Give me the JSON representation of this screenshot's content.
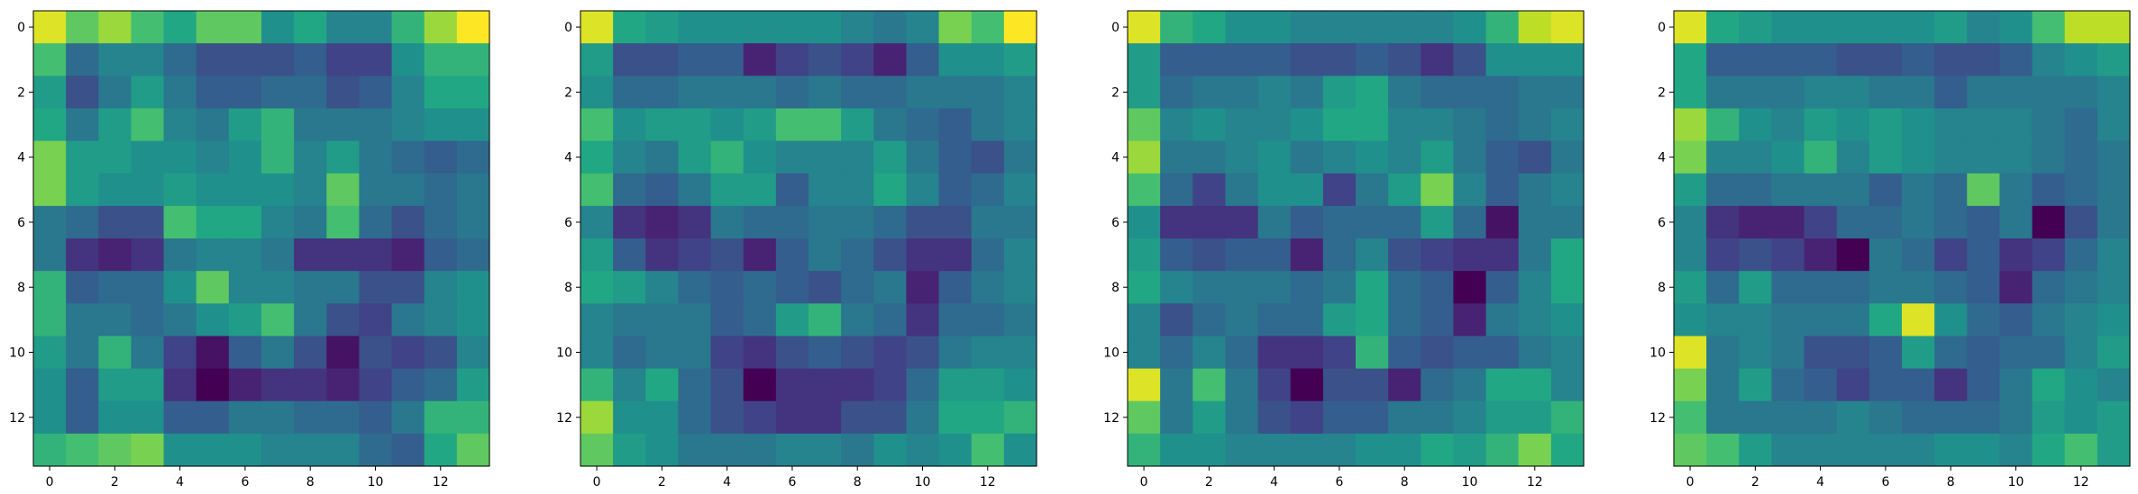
{
  "chart_data": [
    {
      "type": "heatmap",
      "title": "",
      "xlabel": "",
      "ylabel": "",
      "colormap": "viridis",
      "x_ticks": [
        0,
        2,
        4,
        6,
        8,
        10,
        12
      ],
      "y_ticks": [
        0,
        2,
        4,
        6,
        8,
        10,
        12
      ],
      "xlim": [
        -0.5,
        13.5
      ],
      "ylim": [
        13.5,
        -0.5
      ],
      "values": [
        [
          0.95,
          0.75,
          0.85,
          0.7,
          0.6,
          0.75,
          0.75,
          0.5,
          0.6,
          0.45,
          0.45,
          0.65,
          0.85,
          1.0
        ],
        [
          0.7,
          0.35,
          0.45,
          0.45,
          0.35,
          0.25,
          0.25,
          0.25,
          0.3,
          0.2,
          0.2,
          0.5,
          0.65,
          0.65
        ],
        [
          0.55,
          0.25,
          0.4,
          0.55,
          0.4,
          0.3,
          0.3,
          0.35,
          0.35,
          0.25,
          0.3,
          0.45,
          0.6,
          0.6
        ],
        [
          0.6,
          0.4,
          0.55,
          0.7,
          0.45,
          0.4,
          0.55,
          0.65,
          0.4,
          0.4,
          0.4,
          0.45,
          0.5,
          0.5
        ],
        [
          0.8,
          0.55,
          0.55,
          0.5,
          0.5,
          0.45,
          0.5,
          0.65,
          0.45,
          0.55,
          0.4,
          0.35,
          0.3,
          0.35
        ],
        [
          0.8,
          0.55,
          0.5,
          0.5,
          0.55,
          0.5,
          0.5,
          0.5,
          0.45,
          0.75,
          0.4,
          0.4,
          0.35,
          0.4
        ],
        [
          0.4,
          0.35,
          0.25,
          0.25,
          0.7,
          0.6,
          0.6,
          0.45,
          0.4,
          0.7,
          0.35,
          0.25,
          0.35,
          0.4
        ],
        [
          0.4,
          0.15,
          0.1,
          0.15,
          0.4,
          0.45,
          0.45,
          0.4,
          0.15,
          0.15,
          0.15,
          0.1,
          0.3,
          0.35
        ],
        [
          0.65,
          0.3,
          0.35,
          0.35,
          0.5,
          0.75,
          0.45,
          0.45,
          0.4,
          0.4,
          0.25,
          0.25,
          0.45,
          0.5
        ],
        [
          0.65,
          0.4,
          0.4,
          0.35,
          0.4,
          0.5,
          0.55,
          0.7,
          0.4,
          0.25,
          0.2,
          0.4,
          0.45,
          0.5
        ],
        [
          0.55,
          0.4,
          0.65,
          0.4,
          0.2,
          0.05,
          0.3,
          0.4,
          0.25,
          0.05,
          0.25,
          0.2,
          0.25,
          0.45
        ],
        [
          0.5,
          0.3,
          0.55,
          0.55,
          0.15,
          0.0,
          0.1,
          0.15,
          0.15,
          0.1,
          0.2,
          0.3,
          0.35,
          0.55
        ],
        [
          0.5,
          0.3,
          0.5,
          0.5,
          0.3,
          0.3,
          0.4,
          0.4,
          0.35,
          0.35,
          0.3,
          0.4,
          0.65,
          0.65
        ],
        [
          0.65,
          0.7,
          0.75,
          0.8,
          0.5,
          0.5,
          0.5,
          0.45,
          0.45,
          0.45,
          0.35,
          0.3,
          0.6,
          0.75
        ]
      ]
    },
    {
      "type": "heatmap",
      "title": "",
      "xlabel": "",
      "ylabel": "",
      "colormap": "viridis",
      "x_ticks": [
        0,
        2,
        4,
        6,
        8,
        10,
        12
      ],
      "y_ticks": [
        0,
        2,
        4,
        6,
        8,
        10,
        12
      ],
      "xlim": [
        -0.5,
        13.5
      ],
      "ylim": [
        13.5,
        -0.5
      ],
      "values": [
        [
          0.95,
          0.6,
          0.55,
          0.5,
          0.5,
          0.5,
          0.5,
          0.5,
          0.45,
          0.4,
          0.45,
          0.8,
          0.7,
          1.0
        ],
        [
          0.55,
          0.25,
          0.25,
          0.3,
          0.3,
          0.1,
          0.2,
          0.25,
          0.2,
          0.1,
          0.3,
          0.5,
          0.5,
          0.55
        ],
        [
          0.5,
          0.35,
          0.35,
          0.4,
          0.4,
          0.4,
          0.35,
          0.4,
          0.35,
          0.35,
          0.4,
          0.4,
          0.4,
          0.45
        ],
        [
          0.7,
          0.5,
          0.55,
          0.55,
          0.5,
          0.55,
          0.7,
          0.7,
          0.55,
          0.4,
          0.35,
          0.3,
          0.4,
          0.45
        ],
        [
          0.6,
          0.45,
          0.4,
          0.55,
          0.65,
          0.5,
          0.45,
          0.45,
          0.45,
          0.55,
          0.4,
          0.3,
          0.25,
          0.4
        ],
        [
          0.7,
          0.35,
          0.3,
          0.4,
          0.55,
          0.55,
          0.3,
          0.45,
          0.45,
          0.6,
          0.45,
          0.3,
          0.35,
          0.45
        ],
        [
          0.45,
          0.15,
          0.1,
          0.15,
          0.4,
          0.35,
          0.35,
          0.4,
          0.4,
          0.35,
          0.25,
          0.25,
          0.4,
          0.4
        ],
        [
          0.55,
          0.3,
          0.15,
          0.2,
          0.25,
          0.1,
          0.3,
          0.4,
          0.35,
          0.25,
          0.15,
          0.15,
          0.35,
          0.45
        ],
        [
          0.6,
          0.55,
          0.45,
          0.35,
          0.3,
          0.35,
          0.3,
          0.25,
          0.35,
          0.4,
          0.1,
          0.3,
          0.4,
          0.45
        ],
        [
          0.45,
          0.4,
          0.4,
          0.4,
          0.3,
          0.35,
          0.55,
          0.65,
          0.4,
          0.35,
          0.15,
          0.35,
          0.35,
          0.4
        ],
        [
          0.45,
          0.35,
          0.4,
          0.4,
          0.2,
          0.15,
          0.25,
          0.3,
          0.25,
          0.2,
          0.25,
          0.4,
          0.45,
          0.45
        ],
        [
          0.65,
          0.45,
          0.6,
          0.35,
          0.25,
          0.0,
          0.15,
          0.15,
          0.15,
          0.2,
          0.35,
          0.55,
          0.55,
          0.5
        ],
        [
          0.85,
          0.5,
          0.5,
          0.35,
          0.25,
          0.2,
          0.15,
          0.15,
          0.25,
          0.25,
          0.4,
          0.6,
          0.6,
          0.65
        ],
        [
          0.75,
          0.55,
          0.5,
          0.4,
          0.4,
          0.4,
          0.45,
          0.45,
          0.4,
          0.5,
          0.45,
          0.5,
          0.7,
          0.5
        ]
      ]
    },
    {
      "type": "heatmap",
      "title": "",
      "xlabel": "",
      "ylabel": "",
      "colormap": "viridis",
      "x_ticks": [
        0,
        2,
        4,
        6,
        8,
        10,
        12
      ],
      "y_ticks": [
        0,
        2,
        4,
        6,
        8,
        10,
        12
      ],
      "xlim": [
        -0.5,
        13.5
      ],
      "ylim": [
        13.5,
        -0.5
      ],
      "values": [
        [
          0.95,
          0.65,
          0.6,
          0.5,
          0.5,
          0.45,
          0.45,
          0.45,
          0.45,
          0.45,
          0.5,
          0.65,
          0.9,
          0.95
        ],
        [
          0.55,
          0.3,
          0.3,
          0.3,
          0.3,
          0.25,
          0.25,
          0.3,
          0.25,
          0.15,
          0.25,
          0.5,
          0.5,
          0.5
        ],
        [
          0.55,
          0.35,
          0.4,
          0.4,
          0.45,
          0.4,
          0.55,
          0.6,
          0.4,
          0.35,
          0.35,
          0.35,
          0.4,
          0.4
        ],
        [
          0.75,
          0.45,
          0.5,
          0.45,
          0.45,
          0.5,
          0.6,
          0.6,
          0.45,
          0.45,
          0.4,
          0.35,
          0.4,
          0.45
        ],
        [
          0.85,
          0.4,
          0.4,
          0.45,
          0.5,
          0.4,
          0.45,
          0.5,
          0.45,
          0.55,
          0.4,
          0.3,
          0.25,
          0.4
        ],
        [
          0.7,
          0.35,
          0.2,
          0.4,
          0.5,
          0.5,
          0.2,
          0.4,
          0.55,
          0.8,
          0.45,
          0.3,
          0.4,
          0.45
        ],
        [
          0.5,
          0.15,
          0.15,
          0.15,
          0.4,
          0.3,
          0.35,
          0.35,
          0.35,
          0.55,
          0.35,
          0.05,
          0.4,
          0.4
        ],
        [
          0.55,
          0.3,
          0.25,
          0.3,
          0.3,
          0.1,
          0.35,
          0.45,
          0.25,
          0.2,
          0.15,
          0.15,
          0.4,
          0.6
        ],
        [
          0.6,
          0.45,
          0.4,
          0.4,
          0.4,
          0.35,
          0.4,
          0.6,
          0.35,
          0.3,
          0.0,
          0.3,
          0.45,
          0.6
        ],
        [
          0.45,
          0.25,
          0.35,
          0.4,
          0.35,
          0.35,
          0.55,
          0.6,
          0.35,
          0.3,
          0.1,
          0.4,
          0.45,
          0.5
        ],
        [
          0.45,
          0.35,
          0.45,
          0.35,
          0.15,
          0.15,
          0.2,
          0.65,
          0.3,
          0.25,
          0.3,
          0.3,
          0.4,
          0.45
        ],
        [
          0.95,
          0.4,
          0.7,
          0.4,
          0.2,
          0.0,
          0.25,
          0.25,
          0.1,
          0.35,
          0.4,
          0.6,
          0.6,
          0.45
        ],
        [
          0.75,
          0.4,
          0.55,
          0.4,
          0.25,
          0.2,
          0.3,
          0.3,
          0.4,
          0.4,
          0.45,
          0.55,
          0.55,
          0.65
        ],
        [
          0.65,
          0.5,
          0.5,
          0.45,
          0.45,
          0.45,
          0.45,
          0.5,
          0.5,
          0.6,
          0.55,
          0.65,
          0.8,
          0.6
        ]
      ]
    },
    {
      "type": "heatmap",
      "title": "",
      "xlabel": "",
      "ylabel": "",
      "colormap": "viridis",
      "x_ticks": [
        0,
        2,
        4,
        6,
        8,
        10,
        12
      ],
      "y_ticks": [
        0,
        2,
        4,
        6,
        8,
        10,
        12
      ],
      "xlim": [
        -0.5,
        13.5
      ],
      "ylim": [
        13.5,
        -0.5
      ],
      "values": [
        [
          0.95,
          0.6,
          0.55,
          0.5,
          0.5,
          0.5,
          0.5,
          0.5,
          0.55,
          0.45,
          0.5,
          0.7,
          0.9,
          0.9
        ],
        [
          0.6,
          0.3,
          0.3,
          0.3,
          0.3,
          0.25,
          0.25,
          0.3,
          0.25,
          0.25,
          0.3,
          0.45,
          0.5,
          0.55
        ],
        [
          0.6,
          0.4,
          0.4,
          0.4,
          0.45,
          0.45,
          0.4,
          0.4,
          0.3,
          0.4,
          0.4,
          0.4,
          0.4,
          0.45
        ],
        [
          0.85,
          0.65,
          0.5,
          0.45,
          0.55,
          0.5,
          0.55,
          0.5,
          0.45,
          0.45,
          0.45,
          0.4,
          0.35,
          0.45
        ],
        [
          0.8,
          0.45,
          0.45,
          0.5,
          0.65,
          0.45,
          0.55,
          0.5,
          0.45,
          0.45,
          0.45,
          0.4,
          0.35,
          0.4
        ],
        [
          0.55,
          0.35,
          0.35,
          0.4,
          0.4,
          0.4,
          0.3,
          0.4,
          0.35,
          0.75,
          0.4,
          0.3,
          0.35,
          0.4
        ],
        [
          0.45,
          0.15,
          0.1,
          0.1,
          0.2,
          0.35,
          0.35,
          0.4,
          0.35,
          0.3,
          0.4,
          0.0,
          0.25,
          0.4
        ],
        [
          0.45,
          0.2,
          0.25,
          0.2,
          0.1,
          0.0,
          0.4,
          0.35,
          0.2,
          0.3,
          0.15,
          0.2,
          0.35,
          0.45
        ],
        [
          0.55,
          0.35,
          0.55,
          0.35,
          0.35,
          0.35,
          0.4,
          0.4,
          0.35,
          0.3,
          0.1,
          0.35,
          0.4,
          0.45
        ],
        [
          0.5,
          0.45,
          0.45,
          0.4,
          0.4,
          0.4,
          0.6,
          0.95,
          0.5,
          0.35,
          0.3,
          0.4,
          0.45,
          0.5
        ],
        [
          0.95,
          0.4,
          0.45,
          0.4,
          0.25,
          0.25,
          0.3,
          0.55,
          0.35,
          0.3,
          0.35,
          0.35,
          0.45,
          0.55
        ],
        [
          0.8,
          0.4,
          0.55,
          0.35,
          0.3,
          0.2,
          0.3,
          0.3,
          0.15,
          0.3,
          0.4,
          0.6,
          0.5,
          0.45
        ],
        [
          0.7,
          0.4,
          0.4,
          0.4,
          0.4,
          0.45,
          0.4,
          0.35,
          0.35,
          0.35,
          0.4,
          0.55,
          0.5,
          0.55
        ],
        [
          0.75,
          0.7,
          0.55,
          0.45,
          0.45,
          0.45,
          0.45,
          0.45,
          0.5,
          0.5,
          0.45,
          0.6,
          0.7,
          0.55
        ]
      ]
    }
  ]
}
